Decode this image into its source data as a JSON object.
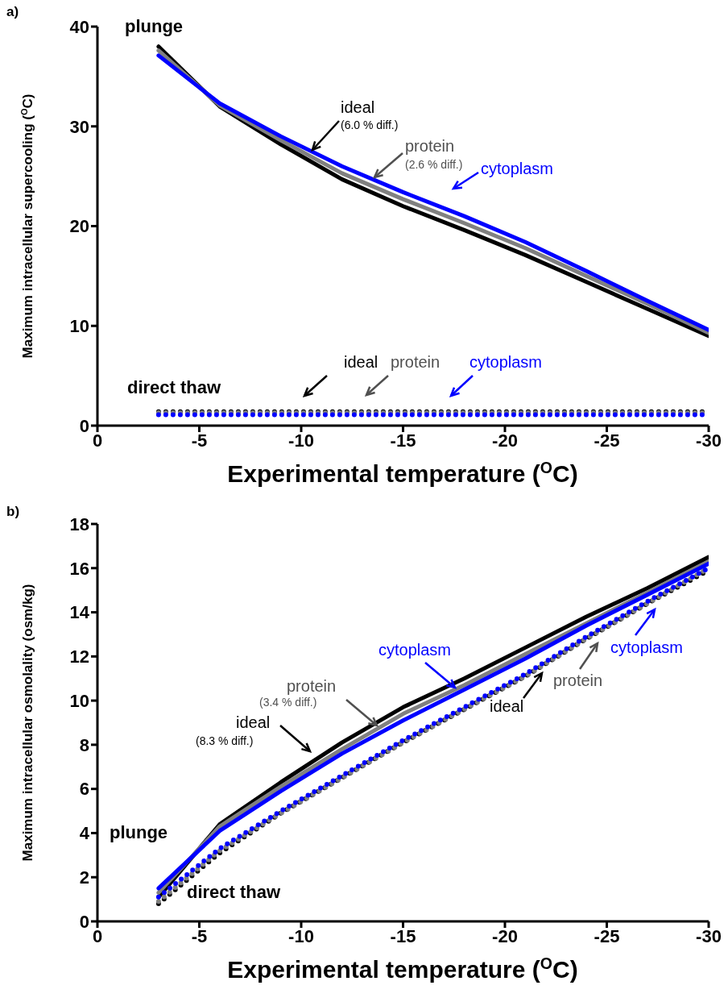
{
  "chart_data": [
    {
      "type": "line",
      "title": "a)",
      "xlabel": "Experimental temperature ($^{O}$C)",
      "ylabel": "Maximum intracellular supercooling ($^{O}$C)",
      "x": [
        -3,
        -6,
        -9,
        -12,
        -15,
        -18,
        -21,
        -24,
        -27,
        -30
      ],
      "xlim": [
        0,
        -30
      ],
      "xticks": [
        0,
        -5,
        -10,
        -15,
        -20,
        -25,
        -30
      ],
      "ylim": [
        0,
        40
      ],
      "yticks": [
        0,
        10,
        20,
        30,
        40
      ],
      "marker": "none",
      "series": [
        {
          "color": "#000000",
          "line_style": "solid",
          "values": [
            38.0,
            32.0,
            28.2,
            24.7,
            22.0,
            19.6,
            17.1,
            14.4,
            11.7,
            9.0
          ]
        },
        {
          "color": "#808080",
          "line_style": "solid",
          "values": [
            37.6,
            32.1,
            28.6,
            25.3,
            22.7,
            20.3,
            17.8,
            15.0,
            12.2,
            9.3
          ]
        },
        {
          "color": "#0000ff",
          "line_style": "solid",
          "values": [
            37.1,
            32.3,
            29.0,
            26.0,
            23.4,
            21.0,
            18.4,
            15.5,
            12.5,
            9.6
          ]
        },
        {
          "color": "#000000",
          "line_style": "dotted",
          "values": [
            1.4,
            1.4,
            1.4,
            1.4,
            1.4,
            1.4,
            1.4,
            1.4,
            1.4,
            1.4
          ]
        },
        {
          "color": "#808080",
          "line_style": "dotted",
          "values": [
            1.3,
            1.3,
            1.3,
            1.3,
            1.3,
            1.3,
            1.3,
            1.3,
            1.3,
            1.3
          ]
        },
        {
          "color": "#0000ff",
          "line_style": "dotted",
          "values": [
            1.1,
            1.1,
            1.1,
            1.1,
            1.1,
            1.1,
            1.1,
            1.1,
            1.1,
            1.1
          ]
        }
      ],
      "annotations": [
        "plunge",
        "direct thaw",
        "ideal",
        "(6.0 % diff.)",
        "protein",
        "(2.6 % diff.)",
        "cytoplasm",
        "ideal",
        "protein",
        "cytoplasm"
      ]
    },
    {
      "type": "line",
      "title": "b)",
      "xlabel": "Experimental temperature ($^{O}$C)",
      "ylabel": "Maximum intracellular osmolality (osm/kg)",
      "x": [
        -3,
        -6,
        -9,
        -12,
        -15,
        -18,
        -21,
        -24,
        -27,
        -30
      ],
      "xlim": [
        0,
        -30
      ],
      "xticks": [
        0,
        -5,
        -10,
        -15,
        -20,
        -25,
        -30
      ],
      "ylim": [
        0,
        18
      ],
      "yticks": [
        0,
        2,
        4,
        6,
        8,
        10,
        12,
        14,
        16,
        18
      ],
      "marker": "none",
      "series": [
        {
          "color": "#000000",
          "line_style": "solid",
          "values": [
            1.1,
            4.4,
            6.3,
            8.1,
            9.7,
            11.0,
            12.4,
            13.8,
            15.1,
            16.5
          ]
        },
        {
          "color": "#808080",
          "line_style": "solid",
          "values": [
            1.3,
            4.3,
            6.1,
            7.8,
            9.4,
            10.7,
            12.1,
            13.5,
            14.9,
            16.3
          ]
        },
        {
          "color": "#0000ff",
          "line_style": "solid",
          "values": [
            1.5,
            4.1,
            5.9,
            7.6,
            9.1,
            10.5,
            11.9,
            13.4,
            14.8,
            16.2
          ]
        },
        {
          "color": "#000000",
          "line_style": "dotted",
          "values": [
            0.8,
            3.1,
            4.9,
            6.5,
            8.1,
            9.6,
            11.1,
            12.8,
            14.4,
            15.9
          ]
        },
        {
          "color": "#808080",
          "line_style": "dotted",
          "values": [
            0.9,
            3.2,
            4.9,
            6.5,
            8.1,
            9.6,
            11.1,
            12.8,
            14.4,
            16.0
          ]
        },
        {
          "color": "#0000ff",
          "line_style": "dotted",
          "values": [
            1.1,
            3.3,
            5.0,
            6.6,
            8.2,
            9.7,
            11.2,
            12.9,
            14.5,
            16.0
          ]
        }
      ],
      "annotations": [
        "plunge",
        "direct thaw",
        "cytoplasm",
        "protein",
        "(3.4 % diff.)",
        "ideal",
        "(8.3 % diff.)",
        "ideal",
        "protein",
        "cytoplasm"
      ]
    }
  ]
}
